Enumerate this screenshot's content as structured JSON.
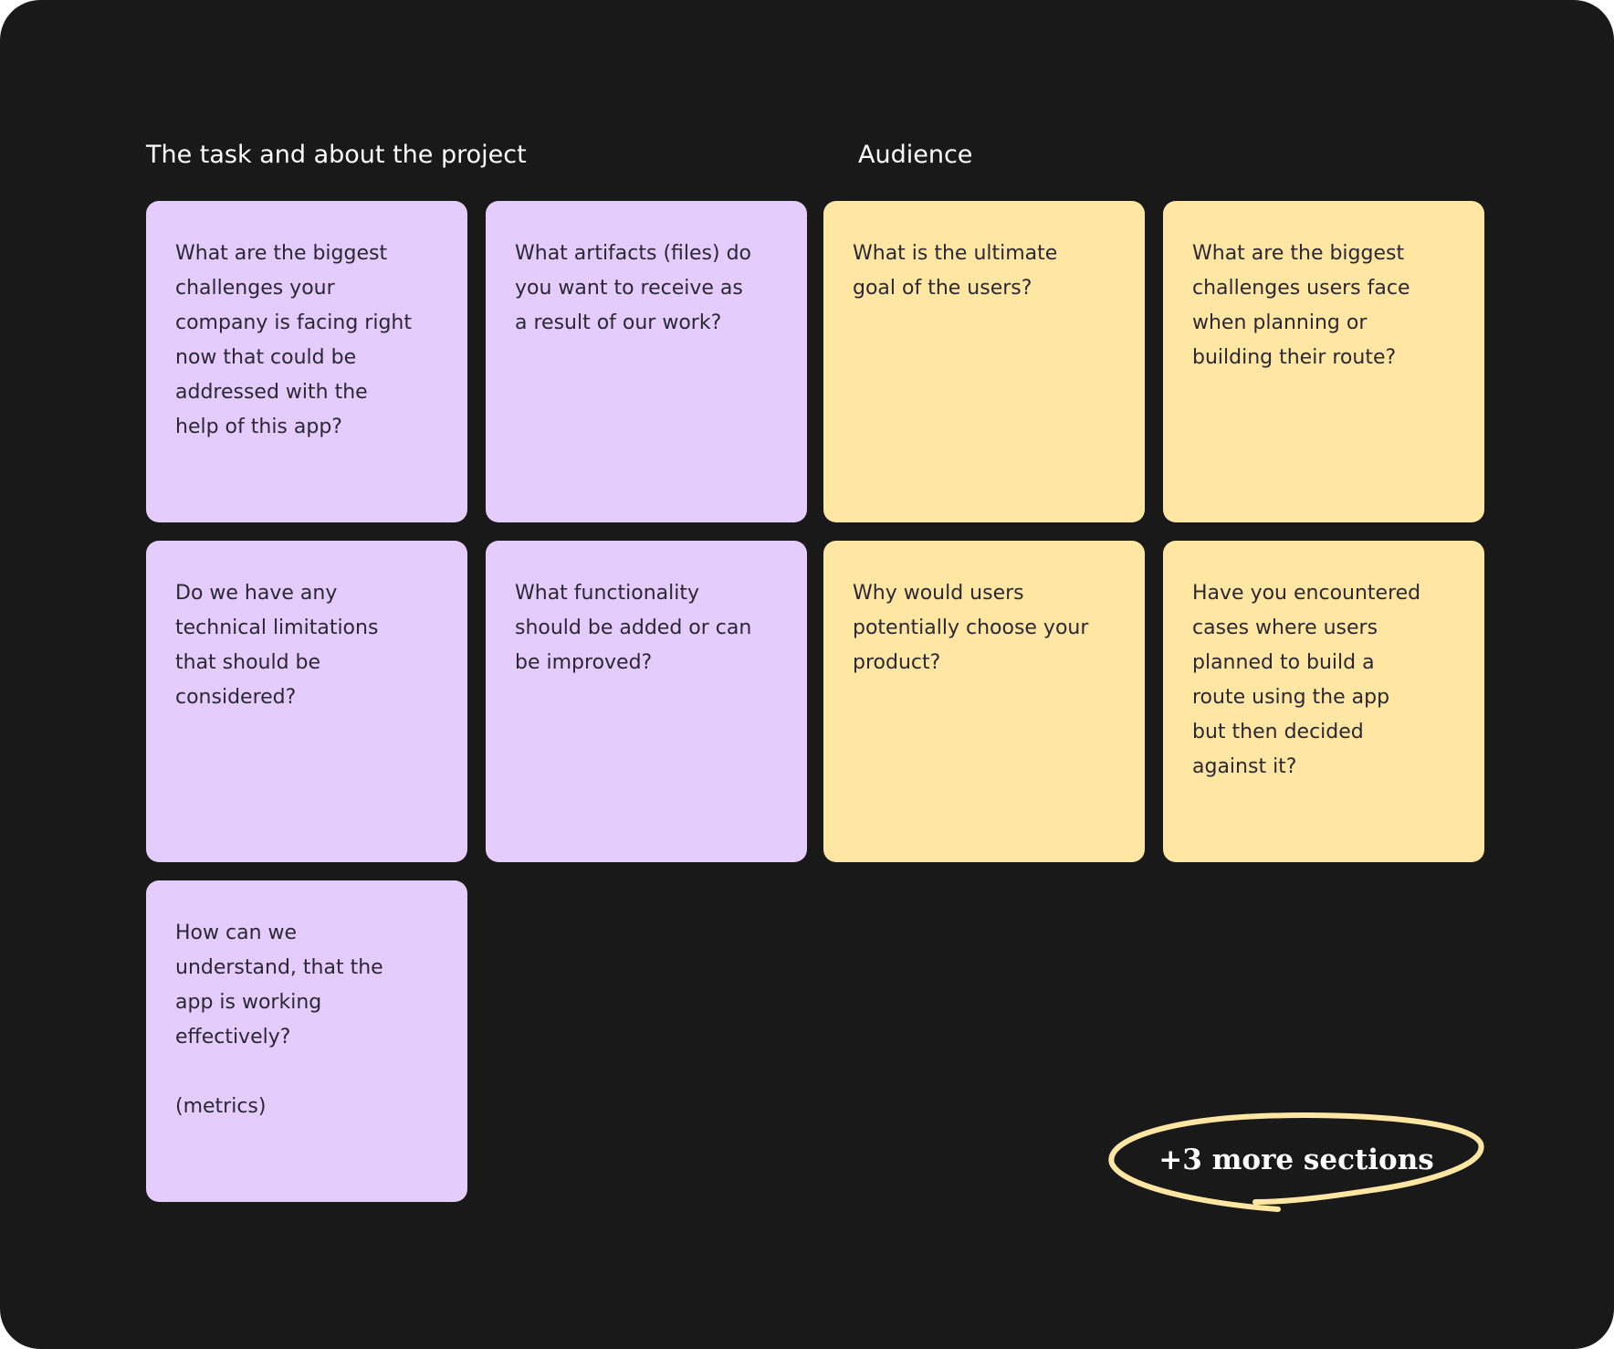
{
  "sections": [
    {
      "title": "The task and about the project",
      "color": "#E4CCFD"
    },
    {
      "title": "Audience",
      "color": "#FFE6A3"
    }
  ],
  "cards": [
    {
      "section": "The task and about the project",
      "text": "What are the biggest\nchallenges your\ncompany is facing right\nnow that could be\naddressed with the\nhelp of this app?"
    },
    {
      "section": "The task and about the project",
      "text": "What artifacts (files) do\nyou want to receive as\na result of our work?"
    },
    {
      "section": "Audience",
      "text": "What is the ultimate\ngoal of the users?"
    },
    {
      "section": "Audience",
      "text": "What are the biggest\nchallenges users face\nwhen planning or\nbuilding their route?"
    },
    {
      "section": "The task and about the project",
      "text": "Do we have any\ntechnical limitations\nthat should be\nconsidered?"
    },
    {
      "section": "The task and about the project",
      "text": "What functionality\nshould be added or can\nbe improved?"
    },
    {
      "section": "Audience",
      "text": "Why would users\npotentially choose your\nproduct?"
    },
    {
      "section": "Audience",
      "text": "Have you encountered\ncases where users\nplanned to build a\nroute using the app\nbut then decided\nagainst it?"
    },
    {
      "section": "The task and about the project",
      "text": "How can we\nunderstand, that the\napp is working\neffectively?\n\n(metrics)"
    }
  ],
  "more_sections": {
    "label": "+3 more sections",
    "outline_color": "#FFE6A3"
  },
  "background_color": "#191919"
}
